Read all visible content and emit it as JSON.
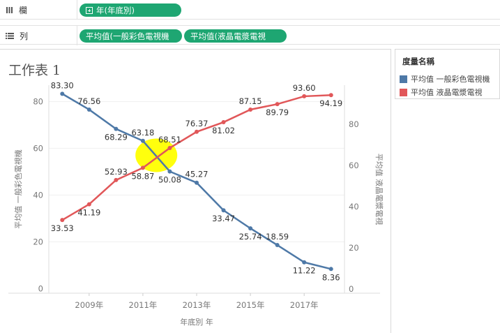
{
  "shelves": {
    "columns": {
      "label": "欄",
      "pills": [
        "年(年底別)"
      ]
    },
    "rows": {
      "label": "列",
      "pills": [
        "平均值(一般彩色電視機",
        "平均值(液晶電漿電視"
      ]
    }
  },
  "sheet": {
    "title": "工作表 1"
  },
  "legend": {
    "title": "度量名稱",
    "items": [
      {
        "label": "平均值 一般彩色電視機",
        "color": "#4e79a7"
      },
      {
        "label": "平均值 液晶電漿電視",
        "color": "#e15759"
      }
    ]
  },
  "chart_data": {
    "type": "line",
    "x": [
      2008,
      2009,
      2010,
      2011,
      2012,
      2013,
      2014,
      2015,
      2016,
      2017,
      2018
    ],
    "xticks": [
      2009,
      2011,
      2013,
      2015,
      2017
    ],
    "xtick_suffix": "年",
    "xlabel": "年底別 年",
    "series": [
      {
        "name": "平均值 一般彩色電視機",
        "axis": "left",
        "color": "#4e79a7",
        "values": [
          83.3,
          76.56,
          68.29,
          63.18,
          50.08,
          45.27,
          33.47,
          25.74,
          18.59,
          11.22,
          8.36
        ],
        "labels": [
          "83.30",
          "76.56",
          "68.29",
          "63.18",
          "50.08",
          "45.27",
          "33.47",
          "25.74",
          "18.59",
          "11.22",
          "8.36"
        ]
      },
      {
        "name": "平均值 液晶電漿電視",
        "axis": "right",
        "color": "#e15759",
        "values": [
          33.53,
          41.19,
          52.93,
          58.87,
          68.51,
          76.37,
          81.02,
          87.15,
          89.79,
          93.6,
          94.19
        ],
        "labels": [
          "33.53",
          "41.19",
          "52.93",
          "58.87",
          "68.51",
          "76.37",
          "81.02",
          "87.15",
          "89.79",
          "93.60",
          "94.19"
        ]
      }
    ],
    "left_axis": {
      "label": "平均值 一般彩色電視機",
      "ticks": [
        0,
        20,
        40,
        60,
        80
      ],
      "range": [
        -2,
        87
      ]
    },
    "right_axis": {
      "label": "平均值 液晶電漿電視",
      "ticks": [
        0,
        20,
        40,
        60,
        80
      ],
      "range": [
        -2,
        99
      ]
    },
    "highlight": {
      "color": "#ffff00"
    }
  }
}
